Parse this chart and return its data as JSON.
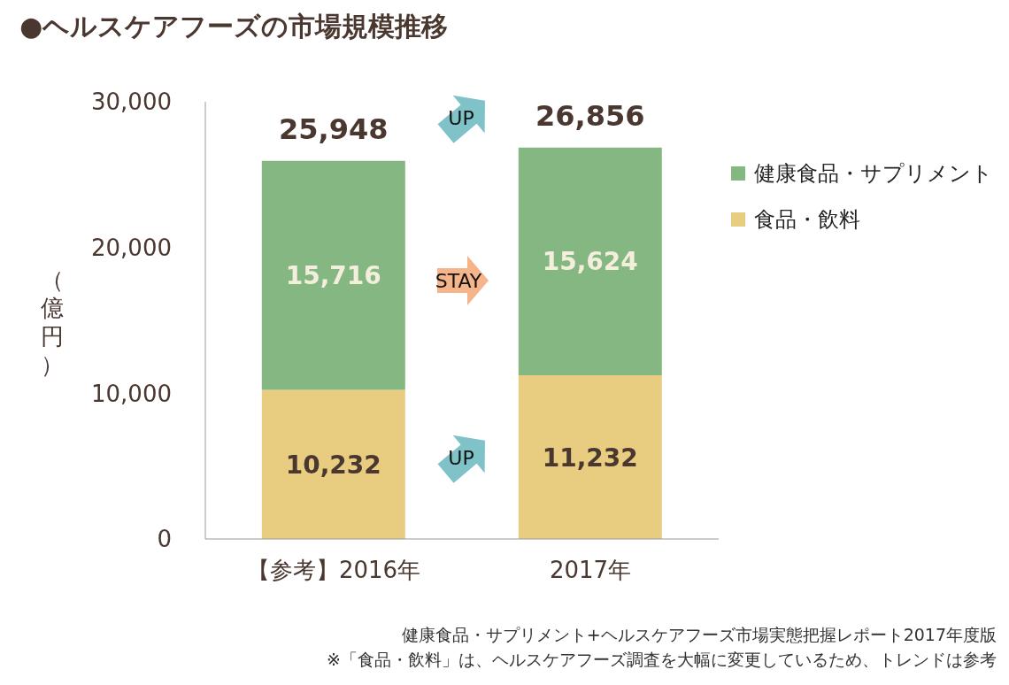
{
  "chart_data": {
    "type": "bar",
    "title": "●ヘルスケアフーズの市場規模推移",
    "ylabel": "（億円）",
    "categories": [
      "【参考】2016年",
      "2017年"
    ],
    "series": [
      {
        "name": "食品・飲料",
        "color": "#e8cc80",
        "values": [
          10232,
          11232
        ],
        "value_labels": [
          "10,232",
          "11,232"
        ]
      },
      {
        "name": "健康食品・サプリメント",
        "color": "#85b783",
        "values": [
          15716,
          15624
        ],
        "value_labels": [
          "15,716",
          "15,624"
        ]
      }
    ],
    "stacked": true,
    "totals": [
      "25,948",
      "26,856"
    ],
    "ylim": [
      0,
      30000
    ],
    "yticks": [
      {
        "value": 0,
        "label": "0"
      },
      {
        "value": 10000,
        "label": "10,000"
      },
      {
        "value": 20000,
        "label": "20,000"
      },
      {
        "value": 30000,
        "label": "30,000"
      }
    ],
    "grid": false,
    "legend": "right",
    "annotations": [
      "UP",
      "STAY",
      "UP",
      "健康食品・サプリメント+ヘルスケアフーズ市場実態把握レポート2017年度版",
      "※「食品・飲料」は、ヘルスケアフーズ調査を大幅に変更しているため、トレンドは参考"
    ]
  }
}
